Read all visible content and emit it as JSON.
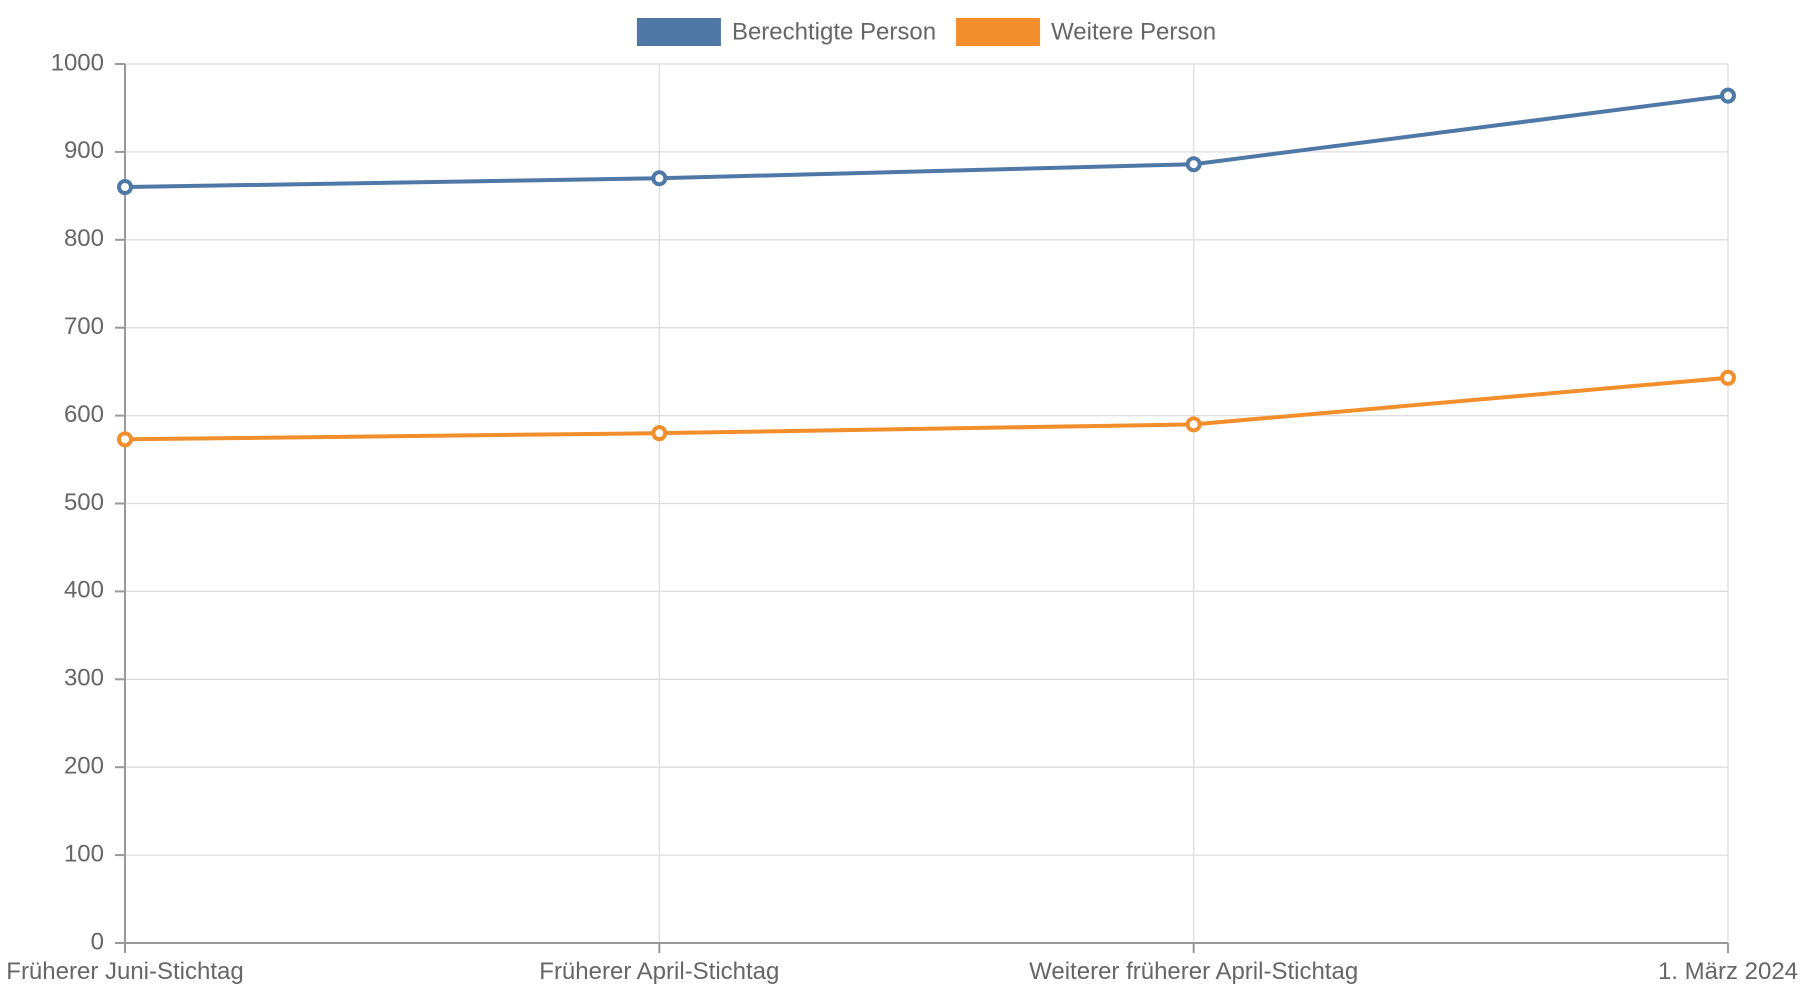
{
  "chart_data": {
    "type": "line",
    "categories": [
      "Früherer Juni-Stichtag",
      "Früherer April-Stichtag",
      "Weiterer früherer April-Stichtag",
      "1. März 2024"
    ],
    "series": [
      {
        "name": "Berechtigte Person",
        "color": "#4e79a7",
        "values": [
          860,
          870,
          886,
          964
        ]
      },
      {
        "name": "Weitere Person",
        "color": "#f28e2b",
        "values": [
          573,
          580,
          590,
          643
        ]
      }
    ],
    "ylim": [
      0,
      1000
    ],
    "yticks": [
      0,
      100,
      200,
      300,
      400,
      500,
      600,
      700,
      800,
      900,
      1000
    ],
    "title": "",
    "xlabel": "",
    "ylabel": "",
    "grid": true,
    "legend": "top-center"
  }
}
